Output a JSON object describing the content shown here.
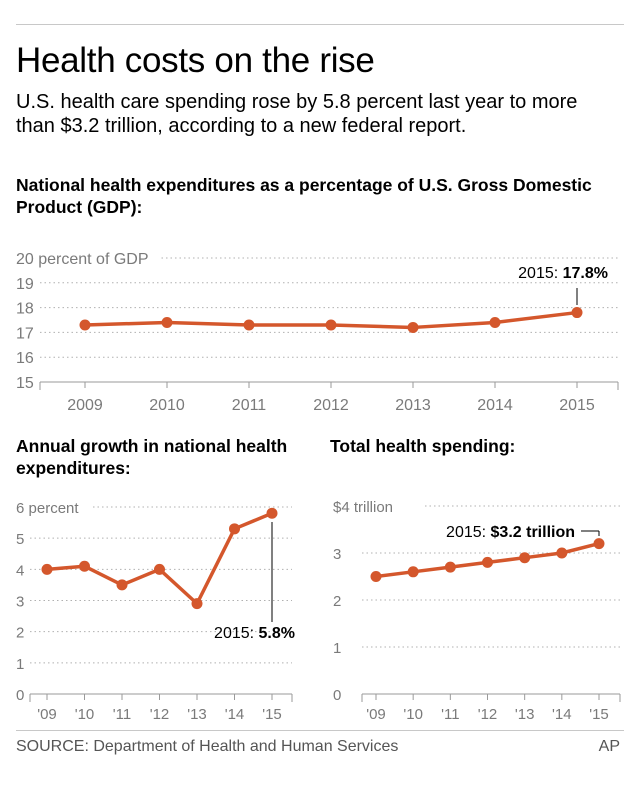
{
  "header": {
    "title": "Health costs on the rise",
    "subtitle": "U.S. health care spending rose by 5.8 percent last year to more than $3.2 trillion, according to a new federal report."
  },
  "footer": {
    "source": "SOURCE: Department of Health and Human Services",
    "credit": "AP"
  },
  "colors": {
    "line": "#d4572c",
    "grid": "#b0b0b0",
    "tick_text": "#7a7a7a"
  },
  "chart_data": [
    {
      "type": "line",
      "title": "National health expenditures as a percentage of U.S. Gross Domestic Product (GDP):",
      "x": [
        "2009",
        "2010",
        "2011",
        "2012",
        "2013",
        "2014",
        "2015"
      ],
      "values": [
        17.3,
        17.4,
        17.3,
        17.3,
        17.2,
        17.4,
        17.8
      ],
      "ylim": [
        15,
        20
      ],
      "yticks": [
        "15",
        "16",
        "17",
        "18",
        "19",
        "20 percent of GDP"
      ],
      "grid": true,
      "annotation": {
        "label": "2015: ",
        "value": "17.8%"
      }
    },
    {
      "type": "line",
      "title": "Annual growth in national health expenditures:",
      "x": [
        "'09",
        "'10",
        "'11",
        "'12",
        "'13",
        "'14",
        "'15"
      ],
      "values": [
        4.0,
        4.1,
        3.5,
        4.0,
        2.9,
        5.3,
        5.8
      ],
      "ylim": [
        0,
        6
      ],
      "yticks": [
        "0",
        "1",
        "2",
        "3",
        "4",
        "5",
        "6 percent"
      ],
      "grid": true,
      "annotation": {
        "label": "2015: ",
        "value": "5.8%"
      }
    },
    {
      "type": "line",
      "title": "Total health spending:",
      "x": [
        "'09",
        "'10",
        "'11",
        "'12",
        "'13",
        "'14",
        "'15"
      ],
      "values": [
        2.5,
        2.6,
        2.7,
        2.8,
        2.9,
        3.0,
        3.2
      ],
      "ylim": [
        0,
        4
      ],
      "yticks": [
        "0",
        "1",
        "2",
        "3",
        "$4 trillion"
      ],
      "grid": true,
      "annotation": {
        "label": "2015: ",
        "value": "$3.2 trillion"
      }
    }
  ]
}
